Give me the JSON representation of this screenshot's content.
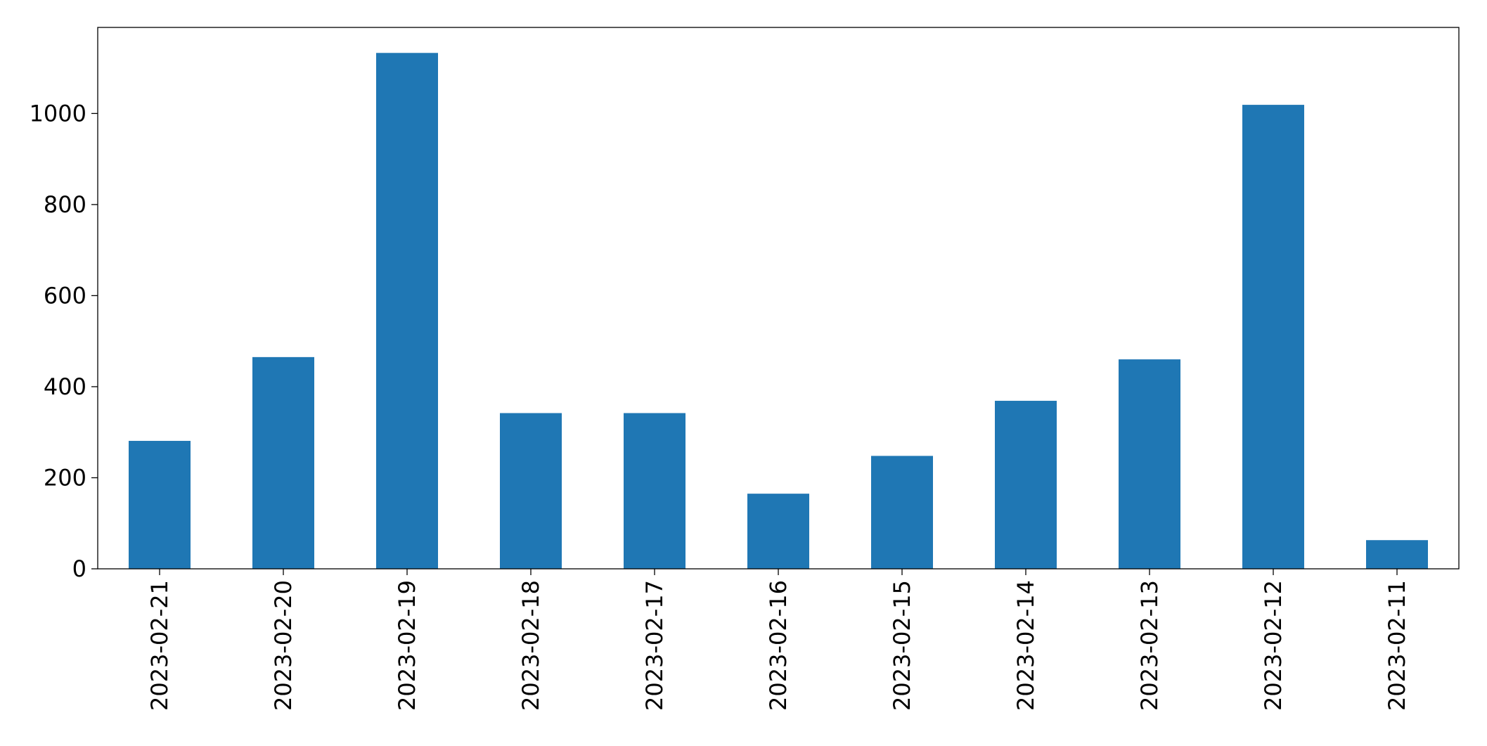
{
  "chart_data": {
    "type": "bar",
    "categories": [
      "2023-02-21",
      "2023-02-20",
      "2023-02-19",
      "2023-02-18",
      "2023-02-17",
      "2023-02-16",
      "2023-02-15",
      "2023-02-14",
      "2023-02-13",
      "2023-02-12",
      "2023-02-11"
    ],
    "values": [
      281,
      465,
      1133,
      342,
      342,
      165,
      248,
      369,
      460,
      1019,
      63
    ],
    "color": "#1f77b4",
    "ylim": [
      0,
      1189
    ],
    "yticks": [
      0,
      200,
      400,
      600,
      800,
      1000
    ],
    "grid": false
  }
}
